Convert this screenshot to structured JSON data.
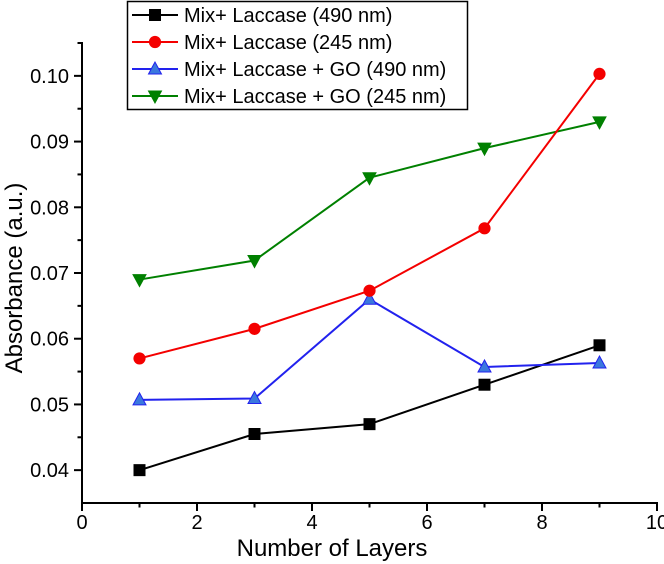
{
  "figure": {
    "background": "#ffffff",
    "axis_color": "#000000"
  },
  "chart_data": {
    "type": "line",
    "title": "",
    "xlabel": "Number of Layers",
    "ylabel": "Absorbance (a.u.)",
    "grid": false,
    "x": [
      1,
      3,
      5,
      7,
      9
    ],
    "series": [
      {
        "name": "Mix+ Laccase (490 nm)",
        "marker": "square",
        "line_color": "#000000",
        "marker_color": "#000000",
        "values": [
          0.04,
          0.0455,
          0.047,
          0.053,
          0.059
        ]
      },
      {
        "name": "Mix+ Laccase (245 nm)",
        "marker": "circle",
        "line_color": "#f40000",
        "marker_color": "#f40000",
        "values": [
          0.057,
          0.0615,
          0.0673,
          0.0768,
          0.1003
        ]
      },
      {
        "name": "Mix+ Laccase + GO (490 nm)",
        "marker": "triangle-up",
        "line_color": "#2222ee",
        "marker_color": "#3b78de",
        "values": [
          0.0507,
          0.0509,
          0.066,
          0.0557,
          0.0563
        ]
      },
      {
        "name": "Mix+ Laccase + GO (245 nm)",
        "marker": "triangle-down",
        "line_color": "#008000",
        "marker_color": "#008000",
        "values": [
          0.069,
          0.0719,
          0.0845,
          0.089,
          0.093
        ]
      }
    ],
    "x_axis": {
      "min": 0,
      "max": 10,
      "major_ticks": [
        0,
        2,
        4,
        6,
        8,
        10
      ],
      "tick_labels": [
        "0",
        "2",
        "4",
        "6",
        "8",
        "10"
      ],
      "minor_ticks": [
        1,
        3,
        5,
        7,
        9
      ]
    },
    "y_axis": {
      "min": 0.035,
      "max": 0.105,
      "major_ticks": [
        0.04,
        0.05,
        0.06,
        0.07,
        0.08,
        0.09,
        0.1
      ],
      "tick_labels": [
        "0.04",
        "0.05",
        "0.06",
        "0.07",
        "0.08",
        "0.09",
        "0.10"
      ],
      "minor_ticks": [
        0.045,
        0.055,
        0.065,
        0.075,
        0.085,
        0.095,
        0.105
      ]
    },
    "legend": {
      "position": "top",
      "border": true,
      "entries": [
        "Mix+ Laccase (490 nm)",
        "Mix+ Laccase (245 nm)",
        "Mix+ Laccase + GO (490 nm)",
        "Mix+ Laccase + GO (245 nm)"
      ]
    }
  }
}
